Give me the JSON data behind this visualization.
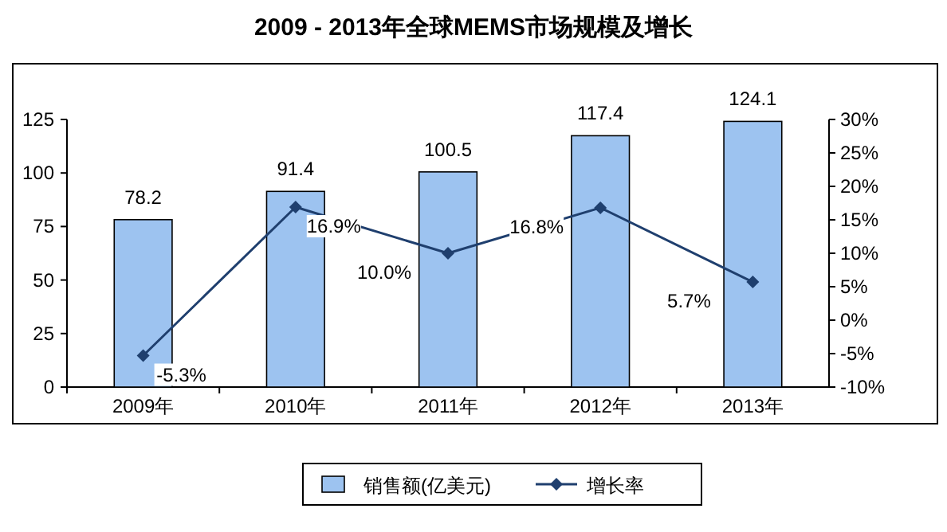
{
  "chart_data": {
    "type": "bar",
    "title": "2009 - 2013年全球MEMS市场规模及增长",
    "categories": [
      "2009年",
      "2010年",
      "2011年",
      "2012年",
      "2013年"
    ],
    "series": [
      {
        "name": "销售额(亿美元)",
        "color": "#9dc3f0",
        "values": [
          78.2,
          91.4,
          100.5,
          117.4,
          124.1
        ],
        "value_labels": [
          "78.2",
          "91.4",
          "100.5",
          "117.4",
          "124.1"
        ]
      },
      {
        "name": "增长率",
        "type": "line",
        "axis": "y2",
        "color": "#1f3f6e",
        "marker": "diamond",
        "values": [
          -5.3,
          16.9,
          10.0,
          16.8,
          5.7
        ],
        "value_labels": [
          "-5.3%",
          "16.9%",
          "10.0%",
          "16.8%",
          "5.7%"
        ]
      }
    ],
    "ylim": [
      0,
      125
    ],
    "yticks": [
      0,
      25,
      50,
      75,
      100,
      125
    ],
    "y2lim": [
      -10,
      30
    ],
    "y2ticks": [
      {
        "value": -10,
        "label": "-10%"
      },
      {
        "value": -5,
        "label": "-5%"
      },
      {
        "value": 0,
        "label": "0%"
      },
      {
        "value": 5,
        "label": "5%"
      },
      {
        "value": 10,
        "label": "10%"
      },
      {
        "value": 15,
        "label": "15%"
      },
      {
        "value": 20,
        "label": "20%"
      },
      {
        "value": 25,
        "label": "25%"
      },
      {
        "value": 30,
        "label": "30%"
      }
    ],
    "legend": "bottom",
    "grid": false
  }
}
